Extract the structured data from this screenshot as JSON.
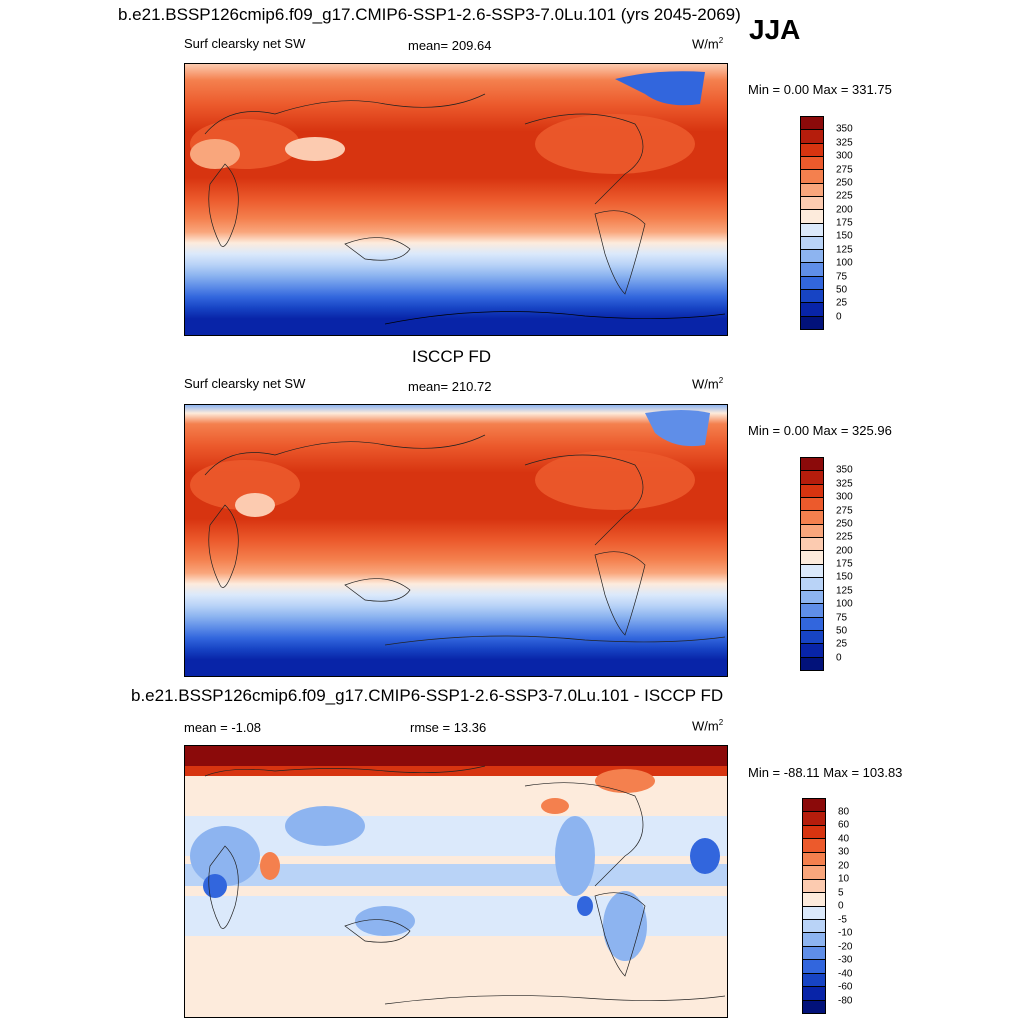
{
  "main_title": "b.e21.BSSP126cmip6.f09_g17.CMIP6-SSP1-2.6-SSP3-7.0Lu.101 (yrs 2045-2069)",
  "season": "JJA",
  "panels": [
    {
      "id": "model",
      "variable": "Surf clearsky net SW",
      "stat": "mean= 209.64",
      "units": "W/m",
      "units_sup": "2",
      "minmax": "Min =   0.00 Max = 331.75"
    },
    {
      "id": "obs",
      "title": "ISCCP FD",
      "variable": "Surf clearsky net SW",
      "stat": "mean= 210.72",
      "units": "W/m",
      "units_sup": "2",
      "minmax": "Min =   0.00 Max = 325.96"
    },
    {
      "id": "diff",
      "title": "b.e21.BSSP126cmip6.f09_g17.CMIP6-SSP1-2.6-SSP3-7.0Lu.101 - ISCCP FD",
      "stat": "mean =  -1.08",
      "stat2": "rmse =  13.36",
      "units": "W/m",
      "units_sup": "2",
      "minmax": "Min = -88.11 Max = 103.83"
    }
  ],
  "colorbar_abs": {
    "labels": [
      "350",
      "325",
      "300",
      "275",
      "250",
      "225",
      "200",
      "175",
      "150",
      "125",
      "100",
      "75",
      "50",
      "25",
      "0"
    ],
    "colors": [
      "#8b0a0a",
      "#b51d0c",
      "#d73410",
      "#ec5a2c",
      "#f4804e",
      "#f9a67c",
      "#fccbb0",
      "#fdebdc",
      "#dbe9fb",
      "#b9d3f7",
      "#8db4f0",
      "#5f8ee8",
      "#3266dd",
      "#1744c4",
      "#0824a8",
      "#02127a"
    ]
  },
  "colorbar_diff": {
    "labels": [
      "80",
      "60",
      "40",
      "30",
      "20",
      "10",
      "5",
      "0",
      "-5",
      "-10",
      "-20",
      "-30",
      "-40",
      "-60",
      "-80"
    ],
    "colors": [
      "#8b0a0a",
      "#b51d0c",
      "#d73410",
      "#ec5a2c",
      "#f4804e",
      "#f9a67c",
      "#fccbb0",
      "#fdebdc",
      "#dbe9fb",
      "#b9d3f7",
      "#8db4f0",
      "#5f8ee8",
      "#3266dd",
      "#1744c4",
      "#0824a8",
      "#02127a"
    ]
  }
}
